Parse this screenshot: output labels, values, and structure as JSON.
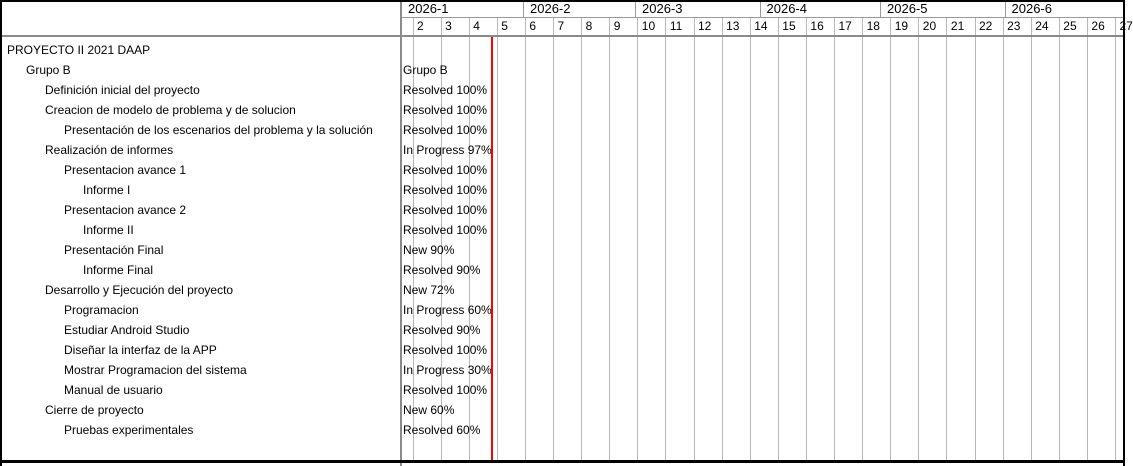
{
  "chart_data": {
    "type": "gantt",
    "title": "PROYECTO II 2021 DAAP",
    "timeline_unit": "weeks",
    "visible_range": "2026-1 to 2026-6, weeks 2-27",
    "bars_visible": false,
    "note": "task bars lie left of the visible date range; only status labels render at chart left edge"
  },
  "timeline": {
    "months": [
      {
        "label": "2026-1"
      },
      {
        "label": "2026-2"
      },
      {
        "label": "2026-3"
      },
      {
        "label": "2026-4"
      },
      {
        "label": "2026-5"
      },
      {
        "label": "2026-6"
      }
    ],
    "weeks": [
      "2",
      "3",
      "4",
      "5",
      "6",
      "7",
      "8",
      "9",
      "10",
      "11",
      "12",
      "13",
      "14",
      "15",
      "16",
      "17",
      "18",
      "19",
      "20",
      "21",
      "22",
      "23",
      "24",
      "25",
      "26",
      "27"
    ]
  },
  "tasks": [
    {
      "name": "PROYECTO II 2021 DAAP",
      "level": 0,
      "chart_label": ""
    },
    {
      "name": "Grupo B",
      "level": 1,
      "chart_label": "Grupo B"
    },
    {
      "name": "Definición inicial del proyecto",
      "level": 2,
      "chart_label": "Resolved 100%"
    },
    {
      "name": "Creacion de modelo de problema y de solucion",
      "level": 2,
      "chart_label": "Resolved 100%"
    },
    {
      "name": "Presentación de los escenarios del problema y la solución",
      "level": 3,
      "chart_label": "Resolved 100%"
    },
    {
      "name": "Realización de informes",
      "level": 2,
      "chart_label": "In Progress 97%"
    },
    {
      "name": "Presentacion avance 1",
      "level": 3,
      "chart_label": "Resolved 100%"
    },
    {
      "name": "Informe I",
      "level": 4,
      "chart_label": "Resolved 100%"
    },
    {
      "name": "Presentacion avance 2",
      "level": 3,
      "chart_label": "Resolved 100%"
    },
    {
      "name": "Informe II",
      "level": 4,
      "chart_label": "Resolved 100%"
    },
    {
      "name": "Presentación Final",
      "level": 3,
      "chart_label": "New 90%"
    },
    {
      "name": "Informe Final",
      "level": 4,
      "chart_label": "Resolved 90%"
    },
    {
      "name": "Desarrollo y Ejecución del proyecto",
      "level": 2,
      "chart_label": "New 72%"
    },
    {
      "name": "Programacion",
      "level": 3,
      "chart_label": "In Progress 60%"
    },
    {
      "name": "Estudiar Android Studio",
      "level": 3,
      "chart_label": "Resolved 90%"
    },
    {
      "name": "Diseñar la interfaz de la APP",
      "level": 3,
      "chart_label": "Resolved 100%"
    },
    {
      "name": "Mostrar Programacion del sistema",
      "level": 3,
      "chart_label": "In Progress 30%"
    },
    {
      "name": "Manual de usuario",
      "level": 3,
      "chart_label": "Resolved 100%"
    },
    {
      "name": "Cierre de proyecto",
      "level": 2,
      "chart_label": "New 60%"
    },
    {
      "name": "Pruebas experimentales",
      "level": 3,
      "chart_label": "Resolved 60%"
    }
  ],
  "colors": {
    "background": "#ffffff",
    "text": "#000000",
    "outer_border": "#000000",
    "pane_divider": "#8a8a8a",
    "header_rule": "#9a9a9a",
    "week_grid": "#b8b8b8",
    "today_line": "#ff0000"
  }
}
